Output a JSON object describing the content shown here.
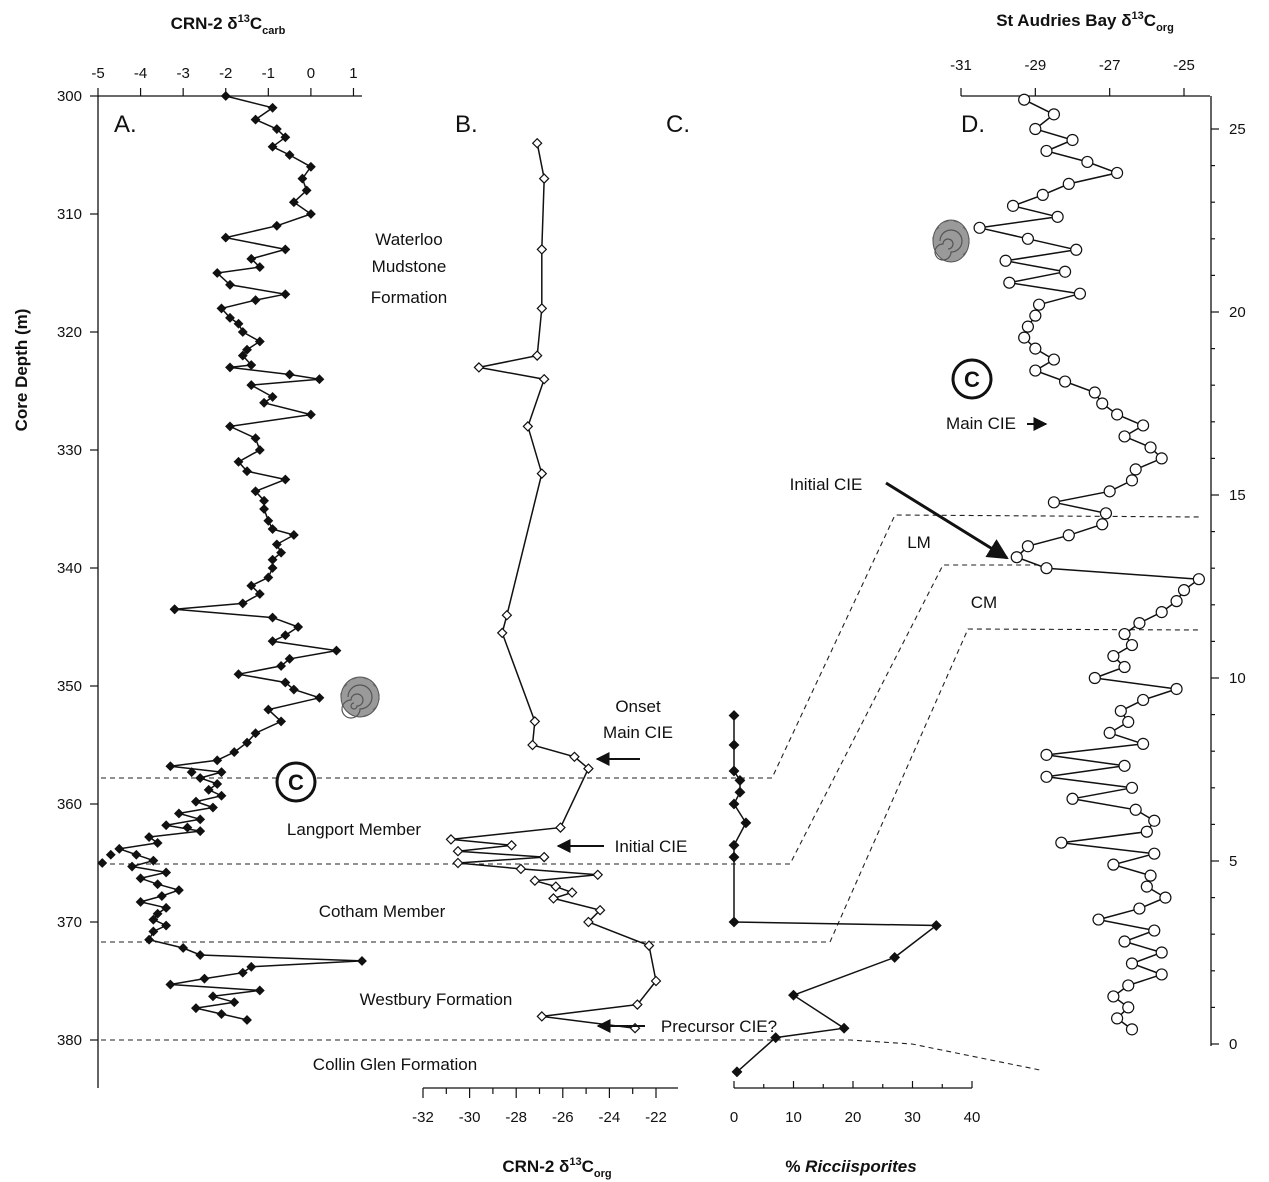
{
  "chart_data": [
    {
      "panel": "A.",
      "type": "scatter",
      "title": "CRN-2 δ13Ccarb",
      "xlabel": "CRN-2 δ13Ccarb",
      "ylabel": "Core Depth (m)",
      "xlim": [
        -5,
        1.2
      ],
      "ylim": [
        383,
        300
      ],
      "xticks": [
        -5,
        -4,
        -3,
        -2,
        -1,
        0,
        1
      ],
      "yticks": [
        300,
        310,
        320,
        330,
        340,
        350,
        360,
        370,
        380
      ],
      "marker": "filled-diamond",
      "series": [
        {
          "depth": [
            300,
            301,
            302,
            302.8,
            303.5,
            304.3,
            305,
            306,
            307,
            308,
            309,
            310,
            311,
            312,
            313,
            313.8,
            314.5,
            315,
            316,
            316.8,
            317.3,
            318,
            318.8,
            319.3,
            320,
            320.8,
            321.5,
            322,
            322.8,
            323,
            323.6,
            324,
            324.5,
            325.5,
            326,
            327,
            328,
            329,
            330,
            331,
            331.8,
            332.5,
            333.5,
            334.3,
            335,
            336,
            336.7,
            337.2,
            338,
            338.7,
            339.3,
            340,
            340.8,
            341.5,
            342.2,
            343,
            343.5,
            344.2,
            345,
            345.7,
            346.2,
            347,
            347.7,
            348.3,
            349,
            349.7,
            350.3,
            351,
            352,
            353,
            354,
            354.8,
            355.6,
            356.3,
            356.8,
            357.3,
            357.8,
            358.3,
            358.8,
            359.3,
            359.8,
            360.3,
            360.8,
            361.3,
            361.8,
            362.3,
            362.8,
            363.3,
            363.8,
            364.3,
            364.8,
            365.3,
            365.8,
            366.3,
            366.8,
            367.3,
            367.8,
            368.3,
            368.8,
            369.3,
            369.8,
            370.3,
            370.8,
            371.5,
            372.2,
            372.8,
            373.3,
            373.8,
            374.3,
            374.8,
            375.3,
            375.8,
            376.3,
            376.8,
            377.3,
            377.8,
            378.3,
            378.8
          ],
          "values": [
            -2.0,
            -0.9,
            -1.3,
            -0.8,
            -0.6,
            -0.9,
            -0.5,
            0.0,
            -0.2,
            -0.1,
            -0.4,
            0.0,
            -0.8,
            -2.0,
            -0.6,
            -1.4,
            -1.2,
            -2.2,
            -1.9,
            -0.6,
            -1.3,
            -2.1,
            -1.9,
            -1.7,
            -1.6,
            -1.2,
            -1.5,
            -1.6,
            -1.4,
            -1.9,
            -0.5,
            0.2,
            -1.4,
            -0.9,
            -1.1,
            0.0,
            -1.9,
            -1.3,
            -1.2,
            -1.7,
            -1.5,
            -0.6,
            -1.3,
            -1.1,
            -1.1,
            -1.0,
            -0.9,
            -0.4,
            -0.8,
            -0.7,
            -0.9,
            -0.9,
            -1.0,
            -1.4,
            -1.2,
            -1.6,
            -3.2,
            -0.9,
            -0.3,
            -0.6,
            -0.9,
            0.6,
            -0.5,
            -0.7,
            -1.7,
            -0.6,
            -0.4,
            0.2,
            -1.0,
            -0.7,
            -1.3,
            -1.5,
            -1.8,
            -2.2,
            -3.3,
            -2.1,
            -2.6,
            -2.2,
            -2.4,
            -2.1,
            -2.7,
            -2.3,
            -3.1,
            -2.6,
            -3.4,
            -2.6,
            -3.8,
            -3.6,
            -4.5,
            -4.1,
            -3.7,
            -4.2,
            -3.4,
            -4.0,
            -3.6,
            -3.1,
            -3.5,
            -4.0,
            -3.4,
            -3.6,
            -3.7,
            -3.4,
            -3.7,
            -3.8,
            -3.0,
            -2.6,
            1.2,
            -1.4,
            -1.6,
            -2.5,
            -3.3,
            -1.2,
            -2.3,
            -1.8,
            -2.7,
            -2.1,
            -1.5
          ],
          "values_extra_outliers": {
            "depth": [
              343.5,
              365.0,
              364.3,
              357.3,
              362.0
            ],
            "values": [
              -3.2,
              -4.9,
              -4.7,
              -2.8,
              -2.9
            ]
          }
        }
      ],
      "annotations": [
        "Waterloo",
        "Mudstone",
        "Formation",
        "Langport Member",
        "Cotham Member",
        "Westbury Formation",
        "Collin Glen Formation",
        "C"
      ]
    },
    {
      "panel": "B.",
      "type": "line",
      "title": "CRN-2 δ13Corg",
      "xlabel": "CRN-2 δ13Corg",
      "xlim": [
        -32,
        -21.5
      ],
      "xticks": [
        -32,
        -30,
        -28,
        -26,
        -24,
        -22
      ],
      "marker": "open-diamond",
      "series": [
        {
          "depth": [
            304,
            307,
            313,
            318,
            322,
            323,
            324,
            328,
            332,
            344,
            345.5,
            353,
            355,
            356,
            357,
            362,
            363,
            363.5,
            364,
            364.5,
            365,
            365.5,
            366,
            366.5,
            367,
            367.5,
            368,
            369,
            370,
            372,
            375,
            377,
            378,
            379
          ],
          "values": [
            -27.1,
            -26.8,
            -26.9,
            -26.9,
            -27.1,
            -29.6,
            -26.8,
            -27.5,
            -26.9,
            -28.4,
            -28.6,
            -27.2,
            -27.3,
            -25.5,
            -24.9,
            -26.1,
            -30.8,
            -28.2,
            -30.5,
            -26.8,
            -30.5,
            -27.8,
            -24.5,
            -27.2,
            -26.3,
            -25.6,
            -26.4,
            -24.4,
            -24.9,
            -22.3,
            -22.0,
            -22.8,
            -26.9,
            -22.9
          ]
        }
      ],
      "annotations": [
        "Onset",
        "Main CIE",
        "Initial CIE",
        "Precursor CIE?"
      ]
    },
    {
      "panel": "C.",
      "type": "line",
      "title": "% Ricciisporites",
      "xlabel": "% Ricciisporites",
      "xlim": [
        0,
        40
      ],
      "xticks": [
        0,
        10,
        20,
        30,
        40
      ],
      "marker": "filled-diamond",
      "series": [
        {
          "depth": [
            352.5,
            355,
            357.2,
            358,
            359,
            360,
            361.6,
            363.5,
            364.5,
            370,
            370.3,
            373,
            376.2,
            379,
            379.8,
            382.7
          ],
          "values": [
            0,
            0,
            0,
            1,
            1,
            0,
            2,
            0,
            0,
            0,
            34,
            27,
            10,
            18.5,
            7,
            0.5
          ]
        }
      ]
    },
    {
      "panel": "D.",
      "type": "line",
      "title": "St Audries Bay δ13Corg",
      "xlabel": "St Audries Bay δ13Corg",
      "xlim": [
        -31,
        -24.4
      ],
      "xticks": [
        -31,
        -29,
        -27,
        -25
      ],
      "ylim": [
        0,
        26
      ],
      "yticks": [
        0,
        5,
        10,
        15,
        20,
        25
      ],
      "marker": "open-circle",
      "series": [
        {
          "height": [
            25.8,
            25.4,
            25.0,
            24.7,
            24.4,
            24.1,
            23.8,
            23.5,
            23.2,
            22.9,
            22.6,
            22.3,
            22.0,
            21.7,
            21.4,
            21.1,
            20.8,
            20.5,
            20.2,
            19.9,
            19.6,
            19.3,
            19.0,
            18.7,
            18.4,
            18.1,
            17.8,
            17.5,
            17.2,
            16.9,
            16.6,
            16.3,
            16.0,
            15.7,
            15.4,
            15.1,
            14.8,
            14.5,
            14.2,
            13.9,
            13.6,
            13.3,
            13.0,
            12.7,
            12.4,
            12.1,
            11.8,
            11.5,
            11.2,
            10.9,
            10.6,
            10.3,
            10.0,
            9.7,
            9.4,
            9.1,
            8.8,
            8.5,
            8.2,
            7.9,
            7.6,
            7.3,
            7.0,
            6.7,
            6.4,
            6.1,
            5.8,
            5.5,
            5.2,
            4.9,
            4.6,
            4.3,
            4.0,
            3.7,
            3.4,
            3.1,
            2.8,
            2.5,
            2.2,
            1.9,
            1.6,
            1.3,
            1.0,
            0.7,
            0.4
          ],
          "values": [
            -29.3,
            -28.5,
            -29.0,
            -28.0,
            -28.7,
            -27.6,
            -26.8,
            -28.1,
            -28.8,
            -29.6,
            -28.4,
            -30.5,
            -29.2,
            -27.9,
            -29.8,
            -28.2,
            -29.7,
            -27.8,
            -28.9,
            -29.0,
            -29.2,
            -29.3,
            -29.0,
            -28.5,
            -29.0,
            -28.2,
            -27.4,
            -27.2,
            -26.8,
            -26.1,
            -26.6,
            -25.9,
            -25.6,
            -26.3,
            -26.4,
            -27.0,
            -28.5,
            -27.1,
            -27.2,
            -28.1,
            -29.2,
            -29.5,
            -28.7,
            -24.6,
            -25.0,
            -25.2,
            -25.6,
            -26.2,
            -26.6,
            -26.4,
            -26.9,
            -26.6,
            -27.4,
            -25.2,
            -26.1,
            -26.7,
            -26.5,
            -27.0,
            -26.1,
            -28.7,
            -26.6,
            -28.7,
            -26.4,
            -28.0,
            -26.3,
            -25.8,
            -26.0,
            -28.3,
            -25.8,
            -26.9,
            -25.9,
            -26.0,
            -25.5,
            -26.2,
            -27.3,
            -25.8,
            -26.6,
            -25.6,
            -26.4,
            -25.6,
            -26.5,
            -26.9,
            -26.5,
            -26.8,
            -26.4
          ]
        }
      ],
      "annotations": [
        "C",
        "Main CIE",
        "Initial CIE",
        "LM",
        "CM"
      ]
    }
  ],
  "labels": {
    "title_a": "CRN-2 δ",
    "title_a_sup": "13",
    "title_a_main": "C",
    "title_a_sub": "carb",
    "title_d": "St Audries Bay δ",
    "title_d_sup": "13",
    "title_d_main": "C",
    "title_d_sub": "org",
    "title_b": "CRN-2 δ",
    "title_b_sup": "13",
    "title_b_main": "C",
    "title_b_sub": "org",
    "title_c_pre": "% ",
    "title_c_ital": "Ricciisporites",
    "ylabel": "Core Depth (m)",
    "panel_a": "A.",
    "panel_b": "B.",
    "panel_c": "C.",
    "panel_d": "D.",
    "formation_waterloo_1": "Waterloo",
    "formation_waterloo_2": "Mudstone",
    "formation_waterloo_3": "Formation",
    "langport": "Langport Member",
    "cotham": "Cotham Member",
    "westbury": "Westbury Formation",
    "collin_glen": "Collin Glen Formation",
    "c_marker": "C",
    "onset_1": "Onset",
    "onset_2": "Main CIE",
    "initial_cie_b": "Initial CIE",
    "precursor_cie": "Precursor CIE?",
    "main_cie_d": "Main CIE",
    "initial_cie_d": "Initial CIE",
    "lm": "LM",
    "cm": "CM"
  }
}
